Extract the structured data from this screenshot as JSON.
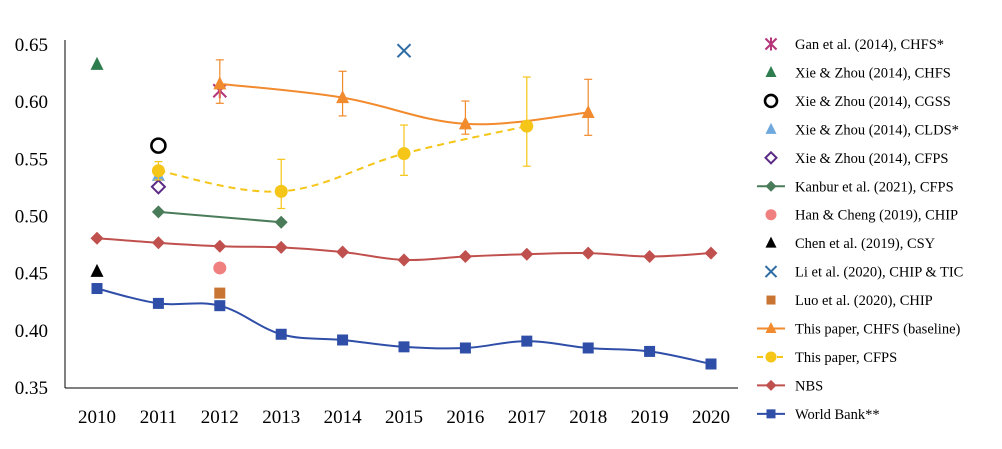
{
  "chart_data": {
    "type": "line",
    "x_ticks": [
      "2010",
      "2011",
      "2012",
      "2013",
      "2014",
      "2015",
      "2016",
      "2017",
      "2018",
      "2019",
      "2020"
    ],
    "y_ticks": [
      "0.35",
      "0.40",
      "0.45",
      "0.50",
      "0.55",
      "0.60",
      "0.65"
    ],
    "ylim": [
      0.35,
      0.65
    ],
    "xlim": [
      2010,
      2020
    ],
    "grid": false,
    "legend": "right",
    "series": [
      {
        "name": "Gan et al. (2014), CHFS*",
        "kind": "scatter",
        "marker": "star",
        "color": "#b5347a",
        "x": [
          2012
        ],
        "y": [
          0.61
        ]
      },
      {
        "name": "Xie & Zhou (2014), CHFS",
        "kind": "scatter",
        "marker": "triangle",
        "color": "#2e7d4f",
        "x": [
          2010
        ],
        "y": [
          0.633
        ]
      },
      {
        "name": "Xie & Zhou (2014), CGSS",
        "kind": "scatter",
        "marker": "ring",
        "color": "#000000",
        "x": [
          2011
        ],
        "y": [
          0.562
        ]
      },
      {
        "name": "Xie & Zhou (2014), CLDS*",
        "kind": "scatter",
        "marker": "triangle",
        "color": "#6fa8dc",
        "x": [
          2011
        ],
        "y": [
          0.536
        ]
      },
      {
        "name": "Xie & Zhou (2014), CFPS",
        "kind": "scatter",
        "marker": "diamond-open",
        "color": "#5b2a86",
        "x": [
          2011
        ],
        "y": [
          0.526
        ]
      },
      {
        "name": "Kanbur et al. (2021), CFPS",
        "kind": "line",
        "marker": "diamond",
        "color": "#4a7c59",
        "x": [
          2011,
          2013
        ],
        "y": [
          0.504,
          0.495
        ]
      },
      {
        "name": "Han & Cheng (2019), CHIP",
        "kind": "scatter",
        "marker": "circle",
        "color": "#f08080",
        "x": [
          2012
        ],
        "y": [
          0.455
        ]
      },
      {
        "name": "Chen et al. (2019), CSY",
        "kind": "scatter",
        "marker": "triangle",
        "color": "#000000",
        "x": [
          2010
        ],
        "y": [
          0.452
        ]
      },
      {
        "name": "Li et al. (2020), CHIP & TIC",
        "kind": "scatter",
        "marker": "x",
        "color": "#2e6da4",
        "x": [
          2015
        ],
        "y": [
          0.645
        ]
      },
      {
        "name": "Luo et al. (2020), CHIP",
        "kind": "scatter",
        "marker": "square",
        "color": "#c87533",
        "x": [
          2012
        ],
        "y": [
          0.433
        ]
      },
      {
        "name": "This paper, CHFS (baseline)",
        "kind": "line",
        "marker": "triangle",
        "color": "#f28a2e",
        "x": [
          2012,
          2014,
          2016,
          2018
        ],
        "y": [
          0.616,
          0.604,
          0.581,
          0.591
        ],
        "err_low": [
          0.599,
          0.588,
          0.572,
          0.571
        ],
        "err_high": [
          0.637,
          0.627,
          0.601,
          0.62
        ]
      },
      {
        "name": "This paper, CFPS",
        "kind": "dashed",
        "marker": "circle",
        "color": "#f5c518",
        "x": [
          2011,
          2013,
          2015,
          2017
        ],
        "y": [
          0.54,
          0.522,
          0.555,
          0.579
        ],
        "err_low": [
          0.532,
          0.507,
          0.536,
          0.544
        ],
        "err_high": [
          0.548,
          0.55,
          0.58,
          0.622
        ]
      },
      {
        "name": "NBS",
        "kind": "line",
        "marker": "diamond",
        "color": "#c0504d",
        "x": [
          2010,
          2011,
          2012,
          2013,
          2014,
          2015,
          2016,
          2017,
          2018,
          2019,
          2020
        ],
        "y": [
          0.481,
          0.477,
          0.474,
          0.473,
          0.469,
          0.462,
          0.465,
          0.467,
          0.468,
          0.465,
          0.468
        ]
      },
      {
        "name": "World Bank**",
        "kind": "line",
        "marker": "square",
        "color": "#2f4ea8",
        "x": [
          2010,
          2011,
          2012,
          2013,
          2014,
          2015,
          2016,
          2017,
          2018,
          2019,
          2020
        ],
        "y": [
          0.437,
          0.424,
          0.422,
          0.397,
          0.392,
          0.386,
          0.385,
          0.391,
          0.385,
          0.382,
          0.371
        ]
      }
    ]
  }
}
